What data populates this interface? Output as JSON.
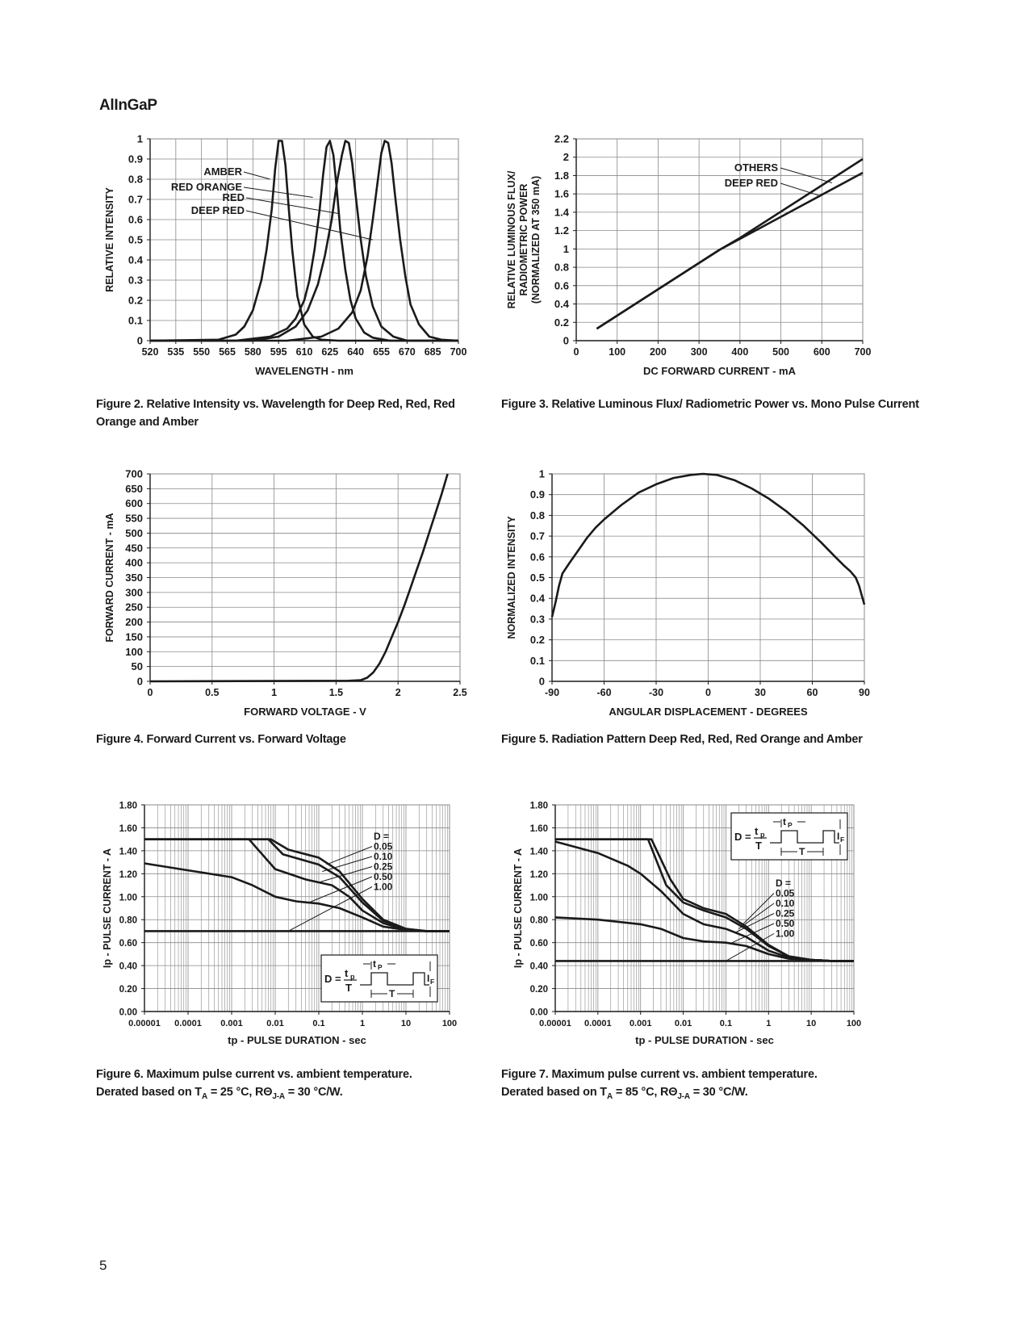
{
  "page": {
    "section_title": "AlInGaP",
    "page_number": "5"
  },
  "captions": {
    "fig2": "Figure 2. Relative Intensity vs. Wavelength for Deep Red, Red, Red Orange and Amber",
    "fig3": "Figure 3. Relative Luminous Flux/ Radiometric Power vs. Mono Pulse Current",
    "fig4": "Figure 4. Forward Current vs. Forward Voltage",
    "fig5": "Figure 5. Radiation Pattern Deep Red, Red, Red Orange and Amber",
    "fig6_line1": "Figure 6. Maximum pulse current vs. ambient temperature.",
    "fig6_line2": "Derated based on T",
    "fig6_sub": "A",
    "fig6_rest": " = 25 °C,  RΘ",
    "fig6_sub2": "J-A",
    "fig6_end": " = 30 °C/W.",
    "fig7_line1": "Figure 7. Maximum pulse current vs. ambient temperature.",
    "fig7_line2": "Derated based on T",
    "fig7_sub": "A",
    "fig7_rest": " = 85 °C,  RΘ",
    "fig7_sub2": "J-A",
    "fig7_end": " = 30 °C/W."
  },
  "colors": {
    "line": "#1a1a1a",
    "grid": "#8a8a8a",
    "axis": "#1a1a1a"
  },
  "chart_data": [
    {
      "id": "fig2",
      "type": "line",
      "xlabel": "WAVELENGTH - nm",
      "ylabel": "RELATIVE INTENSITY",
      "xlim": [
        520,
        700
      ],
      "ylim": [
        0,
        1
      ],
      "xticks": [
        520,
        535,
        550,
        565,
        580,
        595,
        610,
        625,
        640,
        655,
        670,
        685,
        700
      ],
      "xtick_labels": [
        "520",
        "535",
        "550",
        "565",
        "580",
        "595",
        "610",
        "625",
        "640",
        "655",
        "670",
        "685",
        "700"
      ],
      "yticks": [
        0,
        0.1,
        0.2,
        0.3,
        0.4,
        0.5,
        0.6,
        0.7,
        0.8,
        0.9,
        1
      ],
      "ytick_labels": [
        "0",
        "0.1",
        "0.2",
        "0.3",
        "0.4",
        "0.5",
        "0.6",
        "0.7",
        "0.8",
        "0.9",
        "1"
      ],
      "grid": true,
      "series": [
        {
          "name": "AMBER",
          "x": [
            520,
            560,
            570,
            575,
            580,
            585,
            588,
            591,
            593,
            595,
            597,
            599,
            601,
            603,
            606,
            610,
            615,
            620,
            630,
            700
          ],
          "y": [
            0,
            0.005,
            0.03,
            0.07,
            0.15,
            0.3,
            0.45,
            0.65,
            0.85,
            0.99,
            0.99,
            0.87,
            0.65,
            0.45,
            0.22,
            0.08,
            0.02,
            0.005,
            0,
            0
          ]
        },
        {
          "name": "RED ORANGE",
          "x": [
            520,
            570,
            590,
            600,
            605,
            610,
            613,
            616,
            619,
            621,
            623,
            625,
            627,
            629,
            631,
            634,
            637,
            640,
            645,
            650,
            660,
            700
          ],
          "y": [
            0,
            0,
            0.02,
            0.06,
            0.11,
            0.2,
            0.3,
            0.45,
            0.65,
            0.82,
            0.96,
            0.99,
            0.92,
            0.75,
            0.55,
            0.35,
            0.2,
            0.11,
            0.04,
            0.015,
            0,
            0
          ]
        },
        {
          "name": "RED",
          "x": [
            520,
            580,
            595,
            605,
            612,
            618,
            622,
            626,
            629,
            632,
            634,
            636,
            638,
            640,
            643,
            646,
            650,
            655,
            662,
            670,
            700
          ],
          "y": [
            0,
            0,
            0.02,
            0.07,
            0.15,
            0.28,
            0.42,
            0.6,
            0.78,
            0.92,
            0.99,
            0.98,
            0.88,
            0.72,
            0.5,
            0.32,
            0.17,
            0.07,
            0.02,
            0,
            0
          ]
        },
        {
          "name": "DEEP RED",
          "x": [
            520,
            600,
            620,
            630,
            638,
            643,
            647,
            650,
            653,
            655,
            657,
            659,
            661,
            663,
            666,
            669,
            672,
            677,
            683,
            690,
            700
          ],
          "y": [
            0,
            0,
            0.02,
            0.06,
            0.14,
            0.25,
            0.42,
            0.6,
            0.8,
            0.93,
            0.99,
            0.98,
            0.88,
            0.72,
            0.5,
            0.32,
            0.18,
            0.08,
            0.02,
            0.005,
            0
          ]
        }
      ],
      "annotations": [
        "AMBER",
        "RED ORANGE",
        "RED",
        "DEEP RED"
      ]
    },
    {
      "id": "fig3",
      "type": "line",
      "xlabel": "DC FORWARD CURRENT - mA",
      "ylabel": [
        "RELATIVE LUMINOUS FLUX/",
        "RADIOMETRIC POWER",
        "(NORMALIZED AT 350 mA)"
      ],
      "xlim": [
        0,
        700
      ],
      "ylim": [
        0,
        2.2
      ],
      "xticks": [
        0,
        100,
        200,
        300,
        400,
        500,
        600,
        700
      ],
      "xtick_labels": [
        "0",
        "100",
        "200",
        "300",
        "400",
        "500",
        "600",
        "700"
      ],
      "yticks": [
        0,
        0.2,
        0.4,
        0.6,
        0.8,
        1,
        1.2,
        1.4,
        1.6,
        1.8,
        2,
        2.2
      ],
      "ytick_labels": [
        "0",
        "0.2",
        "0.4",
        "0.6",
        "0.8",
        "1",
        "1.2",
        "1.4",
        "1.6",
        "1.8",
        "2",
        "2.2"
      ],
      "grid": true,
      "series": [
        {
          "name": "OTHERS",
          "x": [
            50,
            350,
            400,
            700
          ],
          "y": [
            0.13,
            0.99,
            1.12,
            1.98
          ]
        },
        {
          "name": "DEEP RED",
          "x": [
            50,
            350,
            400,
            700
          ],
          "y": [
            0.13,
            0.99,
            1.11,
            1.83
          ]
        }
      ],
      "annotations": [
        "OTHERS",
        "DEEP RED"
      ]
    },
    {
      "id": "fig4",
      "type": "line",
      "xlabel": "FORWARD VOLTAGE - V",
      "ylabel": "FORWARD CURRENT - mA",
      "xlim": [
        0,
        2.5
      ],
      "ylim": [
        0,
        700
      ],
      "xticks": [
        0,
        0.5,
        1,
        1.5,
        2,
        2.5
      ],
      "xtick_labels": [
        "0",
        "0.5",
        "1",
        "1.5",
        "2",
        "2.5"
      ],
      "yticks": [
        0,
        50,
        100,
        150,
        200,
        250,
        300,
        350,
        400,
        450,
        500,
        550,
        600,
        650,
        700
      ],
      "ytick_labels": [
        "0",
        "50",
        "100",
        "150",
        "200",
        "250",
        "300",
        "350",
        "400",
        "450",
        "500",
        "550",
        "600",
        "650",
        "700"
      ],
      "grid": true,
      "series": [
        {
          "name": "",
          "x": [
            0,
            1.0,
            1.6,
            1.7,
            1.75,
            1.8,
            1.85,
            1.9,
            1.95,
            2.0,
            2.05,
            2.1,
            2.15,
            2.2,
            2.25,
            2.3,
            2.35,
            2.4
          ],
          "y": [
            0,
            1,
            2,
            4,
            12,
            30,
            60,
            100,
            150,
            200,
            255,
            315,
            375,
            435,
            500,
            565,
            630,
            700
          ]
        }
      ]
    },
    {
      "id": "fig5",
      "type": "line",
      "xlabel": "ANGULAR DISPLACEMENT - DEGREES",
      "ylabel": "NORMALIZED INTENSITY",
      "xlim": [
        -90,
        90
      ],
      "ylim": [
        0,
        1
      ],
      "xticks": [
        -90,
        -60,
        -30,
        0,
        30,
        60,
        90
      ],
      "xtick_labels": [
        "-90",
        "-60",
        "-30",
        "0",
        "30",
        "60",
        "90"
      ],
      "yticks": [
        0,
        0.1,
        0.2,
        0.3,
        0.4,
        0.5,
        0.6,
        0.7,
        0.8,
        0.9,
        1
      ],
      "ytick_labels": [
        "0",
        "0.1",
        "0.2",
        "0.3",
        "0.4",
        "0.5",
        "0.6",
        "0.7",
        "0.8",
        "0.9",
        "1"
      ],
      "grid": true,
      "series": [
        {
          "name": "",
          "x": [
            -90,
            -88,
            -86,
            -84,
            -80,
            -75,
            -70,
            -65,
            -60,
            -50,
            -40,
            -30,
            -20,
            -10,
            -3,
            5,
            15,
            25,
            35,
            45,
            55,
            65,
            72,
            78,
            82,
            85,
            87,
            89,
            90
          ],
          "y": [
            0.31,
            0.38,
            0.46,
            0.52,
            0.57,
            0.63,
            0.69,
            0.74,
            0.78,
            0.85,
            0.91,
            0.95,
            0.98,
            0.995,
            1.0,
            0.995,
            0.97,
            0.93,
            0.88,
            0.82,
            0.75,
            0.67,
            0.61,
            0.56,
            0.53,
            0.5,
            0.46,
            0.4,
            0.37
          ]
        }
      ]
    },
    {
      "id": "fig6",
      "type": "line",
      "xlabel": "tp - PULSE DURATION - sec",
      "ylabel": "Ip - PULSE CURRENT - A",
      "xlim": [
        1e-05,
        100
      ],
      "ylim": [
        0,
        1.8
      ],
      "xscale": "log",
      "xticks": [
        1e-05,
        0.0001,
        0.001,
        0.01,
        0.1,
        1,
        10,
        100
      ],
      "xtick_labels": [
        "0.00001",
        "0.0001",
        "0.001",
        "0.01",
        "0.1",
        "1",
        "10",
        "100"
      ],
      "yticks": [
        0,
        0.2,
        0.4,
        0.6,
        0.8,
        1.0,
        1.2,
        1.4,
        1.6,
        1.8
      ],
      "ytick_labels": [
        "0.00",
        "0.20",
        "0.40",
        "0.60",
        "0.80",
        "1.00",
        "1.20",
        "1.40",
        "1.60",
        "1.80"
      ],
      "grid": true,
      "series": [
        {
          "name": "0.05",
          "x": [
            1e-05,
            0.008,
            0.02,
            0.1,
            0.3,
            1,
            3,
            10,
            30,
            100
          ],
          "y": [
            1.5,
            1.5,
            1.41,
            1.34,
            1.22,
            0.98,
            0.8,
            0.72,
            0.7,
            0.7
          ]
        },
        {
          "name": "0.10",
          "x": [
            1e-05,
            0.007,
            0.015,
            0.1,
            0.3,
            1,
            3,
            10,
            30,
            100
          ],
          "y": [
            1.5,
            1.5,
            1.37,
            1.28,
            1.17,
            0.95,
            0.79,
            0.72,
            0.7,
            0.7
          ]
        },
        {
          "name": "0.25",
          "x": [
            1e-05,
            0.0025,
            0.01,
            0.05,
            0.2,
            0.5,
            1,
            3,
            10,
            30,
            100
          ],
          "y": [
            1.5,
            1.5,
            1.24,
            1.15,
            1.1,
            1.0,
            0.88,
            0.77,
            0.71,
            0.7,
            0.7
          ]
        },
        {
          "name": "0.50",
          "x": [
            1e-05,
            0.0001,
            0.001,
            0.003,
            0.01,
            0.03,
            0.1,
            0.3,
            1,
            3,
            10,
            30,
            100
          ],
          "y": [
            1.29,
            1.23,
            1.17,
            1.1,
            1.0,
            0.96,
            0.94,
            0.9,
            0.82,
            0.74,
            0.71,
            0.7,
            0.7
          ]
        },
        {
          "name": "1.00",
          "x": [
            1e-05,
            100
          ],
          "y": [
            0.7,
            0.7
          ]
        }
      ],
      "legend_title": "D =",
      "inset": {
        "formula": "D =",
        "numerator": "t",
        "numerator_sub": "p",
        "denominator": "T",
        "pulse_label": "t",
        "pulse_sub": "P",
        "period_label": "T",
        "current_label": "I",
        "current_sub": "F"
      }
    },
    {
      "id": "fig7",
      "type": "line",
      "xlabel": "tp - PULSE DURATION - sec",
      "ylabel": "Ip - PULSE CURRENT - A",
      "xlim": [
        1e-05,
        100
      ],
      "ylim": [
        0,
        1.8
      ],
      "xscale": "log",
      "xticks": [
        1e-05,
        0.0001,
        0.001,
        0.01,
        0.1,
        1,
        10,
        100
      ],
      "xtick_labels": [
        "0.00001",
        "0.0001",
        "0.001",
        "0.01",
        "0.1",
        "1",
        "10",
        "100"
      ],
      "yticks": [
        0,
        0.2,
        0.4,
        0.6,
        0.8,
        1.0,
        1.2,
        1.4,
        1.6,
        1.8
      ],
      "ytick_labels": [
        "0.00",
        "0.20",
        "0.40",
        "0.60",
        "0.80",
        "1.00",
        "1.20",
        "1.40",
        "1.60",
        "1.80"
      ],
      "grid": true,
      "series": [
        {
          "name": "0.05",
          "x": [
            1e-05,
            0.0018,
            0.005,
            0.01,
            0.03,
            0.1,
            0.3,
            1,
            3,
            10,
            30,
            100
          ],
          "y": [
            1.5,
            1.5,
            1.15,
            0.98,
            0.9,
            0.85,
            0.74,
            0.58,
            0.48,
            0.45,
            0.44,
            0.44
          ]
        },
        {
          "name": "0.10",
          "x": [
            1e-05,
            0.0015,
            0.004,
            0.01,
            0.03,
            0.1,
            0.3,
            1,
            3,
            10,
            30,
            100
          ],
          "y": [
            1.5,
            1.5,
            1.1,
            0.95,
            0.88,
            0.82,
            0.72,
            0.57,
            0.48,
            0.45,
            0.44,
            0.44
          ]
        },
        {
          "name": "0.25",
          "x": [
            1e-05,
            0.0001,
            0.0005,
            0.001,
            0.003,
            0.01,
            0.03,
            0.1,
            0.3,
            1,
            3,
            10,
            30,
            100
          ],
          "y": [
            1.48,
            1.38,
            1.27,
            1.2,
            1.05,
            0.85,
            0.76,
            0.72,
            0.65,
            0.53,
            0.47,
            0.45,
            0.44,
            0.44
          ]
        },
        {
          "name": "0.50",
          "x": [
            1e-05,
            0.0001,
            0.001,
            0.003,
            0.01,
            0.03,
            0.1,
            0.3,
            1,
            3,
            10,
            30,
            100
          ],
          "y": [
            0.82,
            0.8,
            0.76,
            0.72,
            0.64,
            0.61,
            0.6,
            0.57,
            0.5,
            0.46,
            0.45,
            0.44,
            0.44
          ]
        },
        {
          "name": "1.00",
          "x": [
            1e-05,
            100
          ],
          "y": [
            0.44,
            0.44
          ]
        }
      ],
      "legend_title": "D =",
      "inset": {
        "formula": "D =",
        "numerator": "t",
        "numerator_sub": "p",
        "denominator": "T",
        "pulse_label": "t",
        "pulse_sub": "P",
        "period_label": "T",
        "current_label": "I",
        "current_sub": "F"
      }
    }
  ]
}
